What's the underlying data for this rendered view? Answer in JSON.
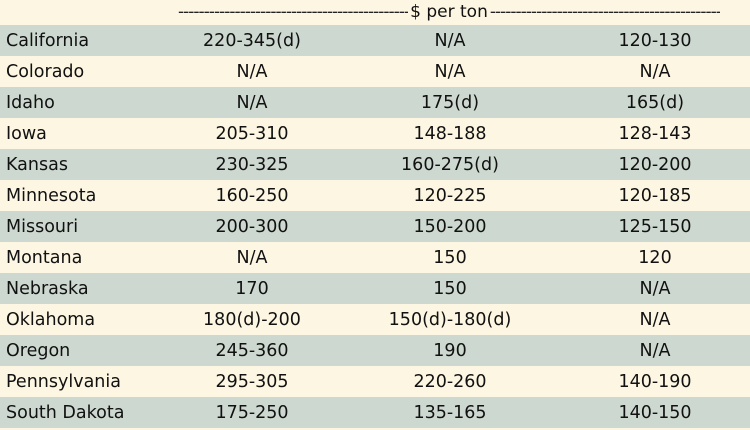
{
  "header": {
    "unit_label": "$ per ton",
    "dashes": "------------------------------------------------------------------------------------------------------------"
  },
  "rows": [
    {
      "state": "California",
      "c1": "220-345(d)",
      "c2": "N/A",
      "c3": "120-130"
    },
    {
      "state": "Colorado",
      "c1": "N/A",
      "c2": "N/A",
      "c3": "N/A"
    },
    {
      "state": "Idaho",
      "c1": "N/A",
      "c2": "175(d)",
      "c3": "165(d)"
    },
    {
      "state": "Iowa",
      "c1": "205-310",
      "c2": "148-188",
      "c3": "128-143"
    },
    {
      "state": "Kansas",
      "c1": "230-325",
      "c2": "160-275(d)",
      "c3": "120-200"
    },
    {
      "state": "Minnesota",
      "c1": "160-250",
      "c2": "120-225",
      "c3": "120-185"
    },
    {
      "state": "Missouri",
      "c1": "200-300",
      "c2": "150-200",
      "c3": "125-150"
    },
    {
      "state": "Montana",
      "c1": "N/A",
      "c2": "150",
      "c3": "120"
    },
    {
      "state": "Nebraska",
      "c1": "170",
      "c2": "150",
      "c3": "N/A"
    },
    {
      "state": "Oklahoma",
      "c1": "180(d)-200",
      "c2": "150(d)-180(d)",
      "c3": "N/A"
    },
    {
      "state": "Oregon",
      "c1": "245-360",
      "c2": "190",
      "c3": "N/A"
    },
    {
      "state": "Pennsylvania",
      "c1": "295-305",
      "c2": "220-260",
      "c3": "140-190"
    },
    {
      "state": "South Dakota",
      "c1": "175-250",
      "c2": "135-165",
      "c3": "140-150"
    }
  ],
  "colors": {
    "shade": "#cdd8d0",
    "plain": "#fcf6e2"
  }
}
